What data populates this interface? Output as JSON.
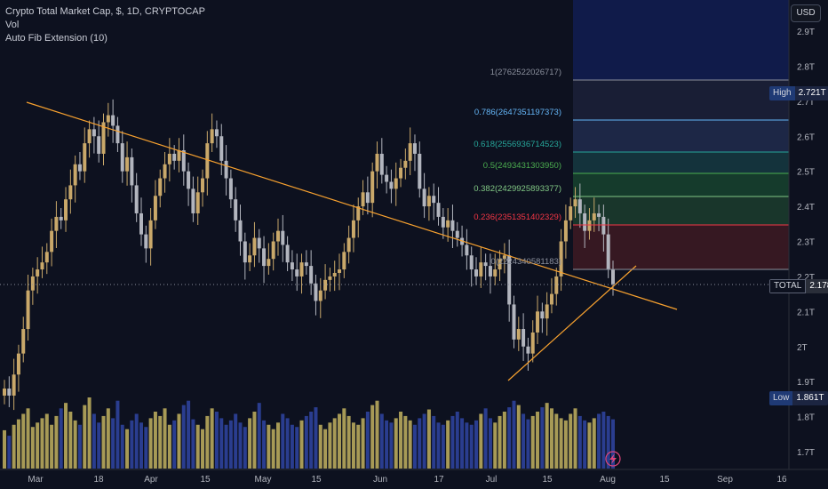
{
  "legend": {
    "title": "Crypto Total Market Cap, $, 1D, CRYPTOCAP",
    "vol": "Vol",
    "fib": "Auto Fib Extension (10)"
  },
  "currency_button": "USD",
  "price_axis": {
    "ticks": [
      "2.9T",
      "2.8T",
      "2.7T",
      "2.6T",
      "2.5T",
      "2.4T",
      "2.3T",
      "2.2T",
      "2.1T",
      "2T",
      "1.9T",
      "1.8T",
      "1.7T"
    ],
    "values": [
      2.9,
      2.8,
      2.7,
      2.6,
      2.5,
      2.4,
      2.3,
      2.2,
      2.1,
      2.0,
      1.9,
      1.8,
      1.7
    ]
  },
  "time_axis": {
    "ticks": [
      "Mar",
      "18",
      "Apr",
      "15",
      "May",
      "15",
      "Jun",
      "17",
      "Jul",
      "15",
      "Aug",
      "15",
      "Sep",
      "16"
    ]
  },
  "price_tags": {
    "high": {
      "label": "High",
      "value": "2.721T"
    },
    "total": {
      "label": "TOTAL",
      "value": "2.178T"
    },
    "low": {
      "label": "Low",
      "value": "1.861T"
    }
  },
  "fib_levels": [
    {
      "label": "1(2762522026717)",
      "color": "#8a8f9c"
    },
    {
      "label": "0.786(2647351197373)",
      "color": "#64b5f6"
    },
    {
      "label": "0.618(2556936714523)",
      "color": "#26a69a"
    },
    {
      "label": "0.5(2493431303950)",
      "color": "#4caf50"
    },
    {
      "label": "0.382(2429925893377)",
      "color": "#81c784"
    },
    {
      "label": "0.236(2351351402329)",
      "color": "#f23645"
    },
    {
      "label": "0(2224340581183)",
      "color": "#8a8f9c"
    }
  ],
  "colors": {
    "up": "#c9a86a",
    "down": "#b2b5be",
    "trendline": "#f7a12f",
    "volume_up": "#a79a56",
    "volume_down": "#2a3d8f",
    "background": "#0d111f"
  },
  "chart_data": {
    "type": "candlestick",
    "title": "Crypto Total Market Cap, $, 1D, CRYPTOCAP",
    "ylim": [
      1.65,
      2.97
    ],
    "last_value": 2.178,
    "high": 2.721,
    "low": 1.861,
    "closes": [
      1.88,
      1.86,
      1.92,
      1.98,
      2.05,
      2.16,
      2.2,
      2.22,
      2.24,
      2.27,
      2.33,
      2.37,
      2.36,
      2.42,
      2.46,
      2.52,
      2.5,
      2.58,
      2.62,
      2.6,
      2.55,
      2.64,
      2.66,
      2.63,
      2.58,
      2.5,
      2.54,
      2.46,
      2.38,
      2.32,
      2.28,
      2.36,
      2.43,
      2.48,
      2.52,
      2.55,
      2.53,
      2.56,
      2.5,
      2.45,
      2.38,
      2.44,
      2.48,
      2.58,
      2.62,
      2.6,
      2.53,
      2.48,
      2.42,
      2.36,
      2.3,
      2.24,
      2.26,
      2.31,
      2.28,
      2.23,
      2.25,
      2.3,
      2.33,
      2.29,
      2.24,
      2.22,
      2.2,
      2.24,
      2.23,
      2.18,
      2.13,
      2.16,
      2.19,
      2.2,
      2.21,
      2.22,
      2.27,
      2.31,
      2.36,
      2.4,
      2.44,
      2.41,
      2.5,
      2.55,
      2.49,
      2.47,
      2.45,
      2.48,
      2.51,
      2.53,
      2.58,
      2.55,
      2.45,
      2.4,
      2.43,
      2.41,
      2.37,
      2.34,
      2.36,
      2.33,
      2.31,
      2.29,
      2.26,
      2.22,
      2.2,
      2.24,
      2.23,
      2.2,
      2.22,
      2.25,
      2.26,
      2.12,
      2.02,
      2.05,
      2.0,
      1.98,
      2.04,
      2.1,
      2.08,
      2.12,
      2.15,
      2.2,
      2.3,
      2.36,
      2.4,
      2.42,
      2.38,
      2.33,
      2.36,
      2.38,
      2.37,
      2.32,
      2.22,
      2.178
    ],
    "volumes": [
      0.35,
      0.3,
      0.4,
      0.45,
      0.5,
      0.55,
      0.38,
      0.42,
      0.46,
      0.5,
      0.4,
      0.48,
      0.55,
      0.6,
      0.52,
      0.44,
      0.4,
      0.58,
      0.65,
      0.5,
      0.42,
      0.48,
      0.55,
      0.46,
      0.62,
      0.4,
      0.36,
      0.44,
      0.5,
      0.42,
      0.38,
      0.46,
      0.52,
      0.48,
      0.55,
      0.4,
      0.44,
      0.5,
      0.58,
      0.62,
      0.45,
      0.4,
      0.36,
      0.48,
      0.55,
      0.52,
      0.46,
      0.4,
      0.44,
      0.5,
      0.42,
      0.38,
      0.46,
      0.52,
      0.6,
      0.44,
      0.4,
      0.36,
      0.42,
      0.5,
      0.46,
      0.4,
      0.38,
      0.44,
      0.48,
      0.52,
      0.56,
      0.4,
      0.36,
      0.42,
      0.46,
      0.5,
      0.55,
      0.48,
      0.42,
      0.4,
      0.46,
      0.52,
      0.58,
      0.62,
      0.5,
      0.44,
      0.42,
      0.46,
      0.52,
      0.48,
      0.44,
      0.4,
      0.46,
      0.5,
      0.54,
      0.48,
      0.42,
      0.4,
      0.44,
      0.48,
      0.52,
      0.46,
      0.42,
      0.4,
      0.44,
      0.5,
      0.55,
      0.46,
      0.42,
      0.48,
      0.52,
      0.56,
      0.62,
      0.58,
      0.5,
      0.45,
      0.48,
      0.52,
      0.56,
      0.6,
      0.55,
      0.5,
      0.46,
      0.44,
      0.5,
      0.55,
      0.48,
      0.44,
      0.42,
      0.46,
      0.5,
      0.52,
      0.48,
      0.45
    ]
  }
}
